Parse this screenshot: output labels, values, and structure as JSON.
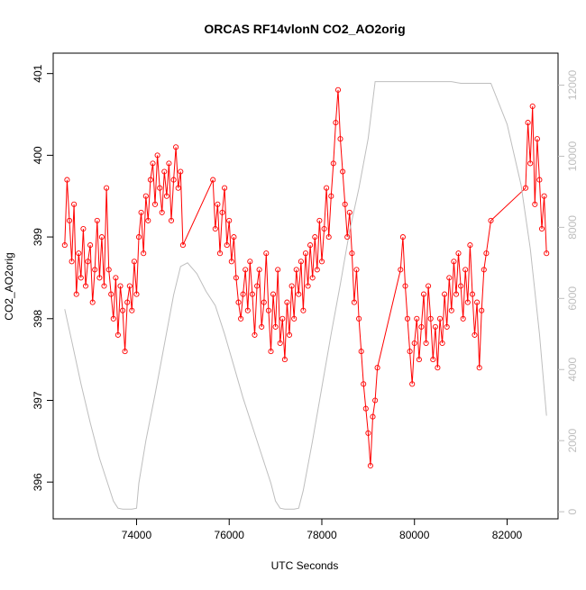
{
  "chart_data": {
    "type": "line",
    "title": "ORCAS RF14vlonN CO2_AO2orig",
    "xlabel": "UTC Seconds",
    "ylabel": "CO2_AO2orig",
    "xlim": [
      72200,
      83100
    ],
    "ylim": [
      395.55,
      401.25
    ],
    "y2lim": [
      -200,
      12900
    ],
    "x_ticks": [
      74000,
      76000,
      78000,
      80000,
      82000
    ],
    "x_tick_labels": [
      "74000",
      "76000",
      "78000",
      "80000",
      "82000"
    ],
    "y_ticks": [
      396,
      397,
      398,
      399,
      400,
      401
    ],
    "y_tick_labels": [
      "396",
      "397",
      "398",
      "399",
      "400",
      "401"
    ],
    "y2_ticks": [
      0,
      2000,
      4000,
      6000,
      8000,
      10000,
      12000
    ],
    "y2_tick_labels": [
      "0",
      "2000",
      "4000",
      "6000",
      "8000",
      "10000",
      "12000"
    ],
    "grid": false,
    "legend": "none",
    "colors": {
      "co2": "#ff0000",
      "altitude": "#bebebe",
      "axis": "#000000",
      "axis2": "#bebebe"
    },
    "series": [
      {
        "name": "CO2_AO2orig",
        "axis": "left",
        "style": "line+circle",
        "points": [
          [
            72450,
            398.9
          ],
          [
            72500,
            399.7
          ],
          [
            72550,
            399.2
          ],
          [
            72600,
            398.7
          ],
          [
            72650,
            399.4
          ],
          [
            72700,
            398.3
          ],
          [
            72750,
            398.8
          ],
          [
            72800,
            398.5
          ],
          [
            72850,
            399.1
          ],
          [
            72900,
            398.4
          ],
          [
            72950,
            398.7
          ],
          [
            73000,
            398.9
          ],
          [
            73050,
            398.2
          ],
          [
            73100,
            398.6
          ],
          [
            73150,
            399.2
          ],
          [
            73200,
            398.5
          ],
          [
            73250,
            399.0
          ],
          [
            73300,
            398.4
          ],
          [
            73350,
            399.6
          ],
          [
            73400,
            398.6
          ],
          [
            73450,
            398.3
          ],
          [
            73500,
            398.0
          ],
          [
            73550,
            398.5
          ],
          [
            73600,
            397.8
          ],
          [
            73650,
            398.4
          ],
          [
            73700,
            398.1
          ],
          [
            73750,
            397.6
          ],
          [
            73800,
            398.2
          ],
          [
            73850,
            398.4
          ],
          [
            73900,
            398.1
          ],
          [
            73950,
            398.7
          ],
          [
            74000,
            398.3
          ],
          [
            74050,
            399.0
          ],
          [
            74100,
            399.3
          ],
          [
            74150,
            398.8
          ],
          [
            74200,
            399.5
          ],
          [
            74250,
            399.2
          ],
          [
            74300,
            399.7
          ],
          [
            74350,
            399.9
          ],
          [
            74400,
            399.4
          ],
          [
            74450,
            400.0
          ],
          [
            74500,
            399.6
          ],
          [
            74550,
            399.3
          ],
          [
            74600,
            399.8
          ],
          [
            74650,
            399.5
          ],
          [
            74700,
            399.9
          ],
          [
            74750,
            399.2
          ],
          [
            74800,
            399.7
          ],
          [
            74850,
            400.1
          ],
          [
            74900,
            399.6
          ],
          [
            74950,
            399.8
          ],
          [
            75000,
            398.9
          ],
          [
            75650,
            399.7
          ],
          [
            75700,
            399.1
          ],
          [
            75750,
            399.4
          ],
          [
            75800,
            398.8
          ],
          [
            75850,
            399.3
          ],
          [
            75900,
            399.6
          ],
          [
            75950,
            398.9
          ],
          [
            76000,
            399.2
          ],
          [
            76050,
            398.7
          ],
          [
            76100,
            399.0
          ],
          [
            76150,
            398.5
          ],
          [
            76200,
            398.2
          ],
          [
            76250,
            398.0
          ],
          [
            76300,
            398.3
          ],
          [
            76350,
            398.6
          ],
          [
            76400,
            398.1
          ],
          [
            76450,
            398.7
          ],
          [
            76500,
            398.3
          ],
          [
            76550,
            397.8
          ],
          [
            76600,
            398.4
          ],
          [
            76650,
            398.6
          ],
          [
            76700,
            397.9
          ],
          [
            76750,
            398.2
          ],
          [
            76800,
            398.8
          ],
          [
            76850,
            398.1
          ],
          [
            76900,
            397.6
          ],
          [
            76950,
            398.3
          ],
          [
            77000,
            397.9
          ],
          [
            77050,
            398.6
          ],
          [
            77100,
            397.7
          ],
          [
            77150,
            398.0
          ],
          [
            77200,
            397.5
          ],
          [
            77250,
            398.2
          ],
          [
            77300,
            397.8
          ],
          [
            77350,
            398.4
          ],
          [
            77400,
            398.0
          ],
          [
            77450,
            398.6
          ],
          [
            77500,
            398.3
          ],
          [
            77550,
            398.7
          ],
          [
            77600,
            398.1
          ],
          [
            77650,
            398.8
          ],
          [
            77700,
            398.4
          ],
          [
            77750,
            398.9
          ],
          [
            77800,
            398.5
          ],
          [
            77850,
            399.0
          ],
          [
            77900,
            398.6
          ],
          [
            77950,
            399.2
          ],
          [
            78000,
            398.7
          ],
          [
            78050,
            399.1
          ],
          [
            78100,
            399.6
          ],
          [
            78150,
            399.0
          ],
          [
            78200,
            399.5
          ],
          [
            78250,
            399.9
          ],
          [
            78300,
            400.4
          ],
          [
            78350,
            400.8
          ],
          [
            78400,
            400.2
          ],
          [
            78450,
            399.8
          ],
          [
            78500,
            399.4
          ],
          [
            78550,
            399.0
          ],
          [
            78600,
            399.3
          ],
          [
            78650,
            398.8
          ],
          [
            78700,
            398.2
          ],
          [
            78750,
            398.6
          ],
          [
            78800,
            398.0
          ],
          [
            78850,
            397.6
          ],
          [
            78900,
            397.2
          ],
          [
            78950,
            396.9
          ],
          [
            79000,
            396.6
          ],
          [
            79050,
            396.2
          ],
          [
            79100,
            396.8
          ],
          [
            79150,
            397.0
          ],
          [
            79200,
            397.4
          ],
          [
            79700,
            398.6
          ],
          [
            79750,
            399.0
          ],
          [
            79800,
            398.4
          ],
          [
            79850,
            398.0
          ],
          [
            79900,
            397.6
          ],
          [
            79950,
            397.2
          ],
          [
            80000,
            397.7
          ],
          [
            80050,
            398.0
          ],
          [
            80100,
            397.5
          ],
          [
            80150,
            397.9
          ],
          [
            80200,
            398.3
          ],
          [
            80250,
            397.7
          ],
          [
            80300,
            398.4
          ],
          [
            80350,
            398.0
          ],
          [
            80400,
            397.5
          ],
          [
            80450,
            397.9
          ],
          [
            80500,
            397.4
          ],
          [
            80550,
            398.0
          ],
          [
            80600,
            397.7
          ],
          [
            80650,
            398.3
          ],
          [
            80700,
            397.9
          ],
          [
            80750,
            398.5
          ],
          [
            80800,
            398.1
          ],
          [
            80850,
            398.7
          ],
          [
            80900,
            398.3
          ],
          [
            80950,
            398.8
          ],
          [
            81000,
            398.4
          ],
          [
            81050,
            398.0
          ],
          [
            81100,
            398.6
          ],
          [
            81150,
            398.2
          ],
          [
            81200,
            398.9
          ],
          [
            81250,
            398.3
          ],
          [
            81300,
            397.8
          ],
          [
            81350,
            398.2
          ],
          [
            81400,
            397.4
          ],
          [
            81450,
            398.1
          ],
          [
            81500,
            398.6
          ],
          [
            81550,
            398.8
          ],
          [
            81650,
            399.2
          ],
          [
            82400,
            399.6
          ],
          [
            82450,
            400.4
          ],
          [
            82500,
            399.9
          ],
          [
            82550,
            400.6
          ],
          [
            82600,
            399.4
          ],
          [
            82650,
            400.2
          ],
          [
            82700,
            399.7
          ],
          [
            82750,
            399.1
          ],
          [
            82800,
            399.5
          ],
          [
            82850,
            398.8
          ]
        ]
      },
      {
        "name": "altitude",
        "axis": "right",
        "style": "line",
        "points": [
          [
            72450,
            5700
          ],
          [
            72600,
            4800
          ],
          [
            72800,
            3600
          ],
          [
            73000,
            2500
          ],
          [
            73200,
            1500
          ],
          [
            73400,
            700
          ],
          [
            73500,
            300
          ],
          [
            73600,
            100
          ],
          [
            73700,
            70
          ],
          [
            73900,
            70
          ],
          [
            74000,
            100
          ],
          [
            74050,
            800
          ],
          [
            74200,
            2000
          ],
          [
            74400,
            3300
          ],
          [
            74600,
            4700
          ],
          [
            74800,
            6100
          ],
          [
            74950,
            6900
          ],
          [
            75100,
            7000
          ],
          [
            75300,
            6700
          ],
          [
            75500,
            6200
          ],
          [
            75700,
            5800
          ],
          [
            75900,
            5000
          ],
          [
            76100,
            4100
          ],
          [
            76300,
            3200
          ],
          [
            76500,
            2400
          ],
          [
            76700,
            1600
          ],
          [
            76900,
            800
          ],
          [
            77000,
            300
          ],
          [
            77100,
            100
          ],
          [
            77200,
            70
          ],
          [
            77400,
            70
          ],
          [
            77500,
            100
          ],
          [
            77600,
            600
          ],
          [
            77800,
            2000
          ],
          [
            78000,
            3500
          ],
          [
            78200,
            5000
          ],
          [
            78400,
            6400
          ],
          [
            78600,
            7900
          ],
          [
            78800,
            9100
          ],
          [
            79000,
            10500
          ],
          [
            79150,
            12100
          ],
          [
            79700,
            12100
          ],
          [
            80500,
            12100
          ],
          [
            80800,
            12100
          ],
          [
            81000,
            12050
          ],
          [
            81200,
            12050
          ],
          [
            81650,
            12050
          ],
          [
            82000,
            10900
          ],
          [
            82300,
            9200
          ],
          [
            82500,
            7400
          ],
          [
            82700,
            5000
          ],
          [
            82850,
            2700
          ]
        ]
      }
    ]
  }
}
